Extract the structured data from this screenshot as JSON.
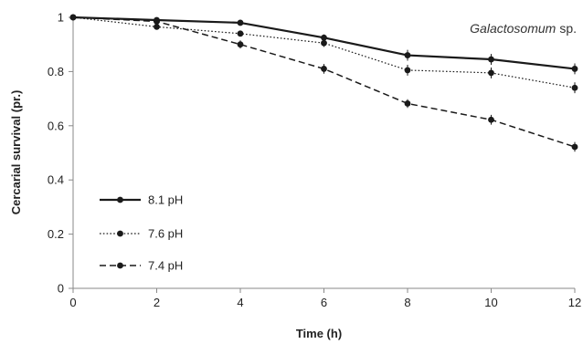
{
  "chart_data": {
    "type": "line",
    "title": "",
    "annotation": {
      "species_italic": "Galactosomum",
      "species_suffix": "sp."
    },
    "xlabel": "Time (h)",
    "ylabel": "Cercarial survival (pr.)",
    "xlim": [
      0,
      12
    ],
    "ylim": [
      0,
      1
    ],
    "x_ticks": [
      0,
      2,
      4,
      6,
      8,
      10,
      12
    ],
    "x_tick_labels": [
      "0",
      "2",
      "4",
      "6",
      "8",
      "10",
      "12"
    ],
    "y_ticks": [
      0,
      0.2,
      0.4,
      0.6,
      0.8,
      1
    ],
    "y_tick_labels": [
      "0",
      "0.2",
      "0.4",
      "0.6",
      "0.8",
      "1"
    ],
    "grid": false,
    "legend_position": "bottom-left",
    "x": [
      0,
      2,
      4,
      6,
      8,
      10,
      12
    ],
    "series": [
      {
        "name": "8.1 pH",
        "line_style": "solid",
        "values": [
          1.0,
          0.99,
          0.98,
          0.925,
          0.86,
          0.845,
          0.81
        ],
        "errors": [
          0,
          0.008,
          0.008,
          0.012,
          0.02,
          0.02,
          0.02
        ]
      },
      {
        "name": "7.6 pH",
        "line_style": "dotted",
        "values": [
          1.0,
          0.965,
          0.94,
          0.905,
          0.805,
          0.795,
          0.74
        ],
        "errors": [
          0,
          0.01,
          0.01,
          0.014,
          0.02,
          0.02,
          0.02
        ]
      },
      {
        "name": "7.4 pH",
        "line_style": "dashed",
        "values": [
          1.0,
          0.985,
          0.9,
          0.81,
          0.682,
          0.622,
          0.522
        ],
        "errors": [
          0,
          0.01,
          0.015,
          0.018,
          0.016,
          0.018,
          0.018
        ]
      }
    ],
    "colors": {
      "line": "#1a1a1a",
      "axis": "#888888"
    }
  }
}
